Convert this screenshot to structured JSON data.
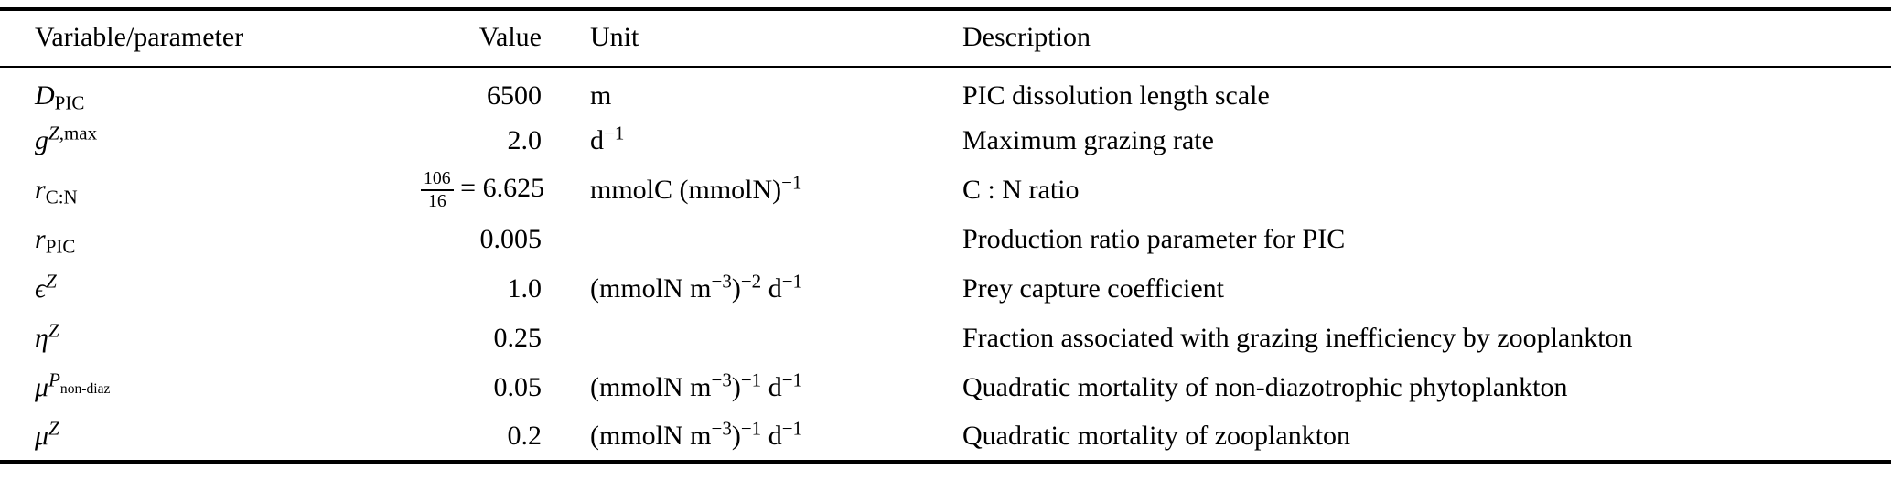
{
  "colors": {
    "text": "#000000",
    "background": "#ffffff",
    "rule": "#000000"
  },
  "table": {
    "headers": [
      "Variable/parameter",
      "Value",
      "Unit",
      "Description"
    ],
    "rows": [
      {
        "variable": [
          {
            "t": "D",
            "i": true
          },
          {
            "t": "PIC",
            "p": "sub"
          }
        ],
        "value": [
          {
            "t": "6500"
          }
        ],
        "unit": [
          {
            "t": "m"
          }
        ],
        "description": [
          {
            "t": "PIC dissolution length scale"
          }
        ]
      },
      {
        "variable": [
          {
            "t": "g",
            "i": true
          },
          {
            "t": "Z",
            "i": true,
            "p": "sup"
          },
          {
            "t": ",max",
            "p": "sup"
          }
        ],
        "value": [
          {
            "t": "2.0"
          }
        ],
        "unit": [
          {
            "t": "d"
          },
          {
            "t": "−1",
            "p": "sup"
          }
        ],
        "description": [
          {
            "t": "Maximum grazing rate"
          }
        ]
      },
      {
        "variable": [
          {
            "t": "r",
            "i": true
          },
          {
            "t": "C:N",
            "p": "sub"
          }
        ],
        "value": [
          {
            "frac": {
              "num": "106",
              "den": "16"
            }
          },
          {
            "t": " = 6.625"
          }
        ],
        "unit": [
          {
            "t": "mmolC (mmolN)"
          },
          {
            "t": "−1",
            "p": "sup"
          }
        ],
        "description": [
          {
            "t": "C : N ratio"
          }
        ]
      },
      {
        "variable": [
          {
            "t": "r",
            "i": true
          },
          {
            "t": "PIC",
            "p": "sub"
          }
        ],
        "value": [
          {
            "t": "0.005"
          }
        ],
        "unit": [],
        "description": [
          {
            "t": "Production ratio parameter for PIC"
          }
        ]
      },
      {
        "variable": [
          {
            "t": "ϵ",
            "i": true
          },
          {
            "t": "Z",
            "i": true,
            "p": "sup"
          }
        ],
        "value": [
          {
            "t": "1.0"
          }
        ],
        "unit": [
          {
            "t": "(mmolN m"
          },
          {
            "t": "−3",
            "p": "sup"
          },
          {
            "t": ")"
          },
          {
            "t": "−2",
            "p": "sup"
          },
          {
            "t": " d"
          },
          {
            "t": "−1",
            "p": "sup"
          }
        ],
        "description": [
          {
            "t": "Prey capture coefficient"
          }
        ]
      },
      {
        "variable": [
          {
            "t": "η",
            "i": true
          },
          {
            "t": "Z",
            "i": true,
            "p": "sup"
          }
        ],
        "value": [
          {
            "t": "0.25"
          }
        ],
        "unit": [],
        "description": [
          {
            "t": "Fraction associated with grazing inefficiency by zooplankton"
          }
        ]
      },
      {
        "variable": [
          {
            "t": "μ",
            "i": true
          },
          {
            "t": "P",
            "i": true,
            "p": "sup"
          },
          {
            "t": "non-diaz",
            "p": "supsub"
          }
        ],
        "value": [
          {
            "t": "0.05"
          }
        ],
        "unit": [
          {
            "t": "(mmolN m"
          },
          {
            "t": "−3",
            "p": "sup"
          },
          {
            "t": ")"
          },
          {
            "t": "−1",
            "p": "sup"
          },
          {
            "t": " d"
          },
          {
            "t": "−1",
            "p": "sup"
          }
        ],
        "description": [
          {
            "t": "Quadratic mortality of non-diazotrophic phytoplankton"
          }
        ]
      },
      {
        "variable": [
          {
            "t": "μ",
            "i": true
          },
          {
            "t": "Z",
            "i": true,
            "p": "sup"
          }
        ],
        "value": [
          {
            "t": "0.2"
          }
        ],
        "unit": [
          {
            "t": "(mmolN m"
          },
          {
            "t": "−3",
            "p": "sup"
          },
          {
            "t": ")"
          },
          {
            "t": "−1",
            "p": "sup"
          },
          {
            "t": " d"
          },
          {
            "t": "−1",
            "p": "sup"
          }
        ],
        "description": [
          {
            "t": "Quadratic mortality of zooplankton"
          }
        ]
      }
    ]
  }
}
